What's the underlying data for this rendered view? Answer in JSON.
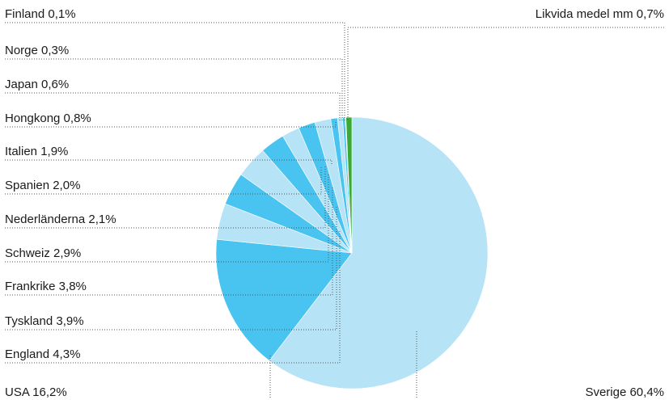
{
  "chart_data": {
    "type": "pie",
    "title": "",
    "legend": "none",
    "slices": [
      {
        "label": "Sverige 60,4%",
        "value": 60.4,
        "color": "#b7e3f7"
      },
      {
        "label": "USA 16,2%",
        "value": 16.2,
        "color": "#49c3f0"
      },
      {
        "label": "England 4,3%",
        "value": 4.3,
        "color": "#b7e3f7"
      },
      {
        "label": "Tyskland 3,9%",
        "value": 3.9,
        "color": "#49c3f0"
      },
      {
        "label": "Frankrike 3,8%",
        "value": 3.8,
        "color": "#b7e3f7"
      },
      {
        "label": "Schweiz 2,9%",
        "value": 2.9,
        "color": "#49c3f0"
      },
      {
        "label": "Nederländerna 2,1%",
        "value": 2.1,
        "color": "#b7e3f7"
      },
      {
        "label": "Spanien 2,0%",
        "value": 2.0,
        "color": "#49c3f0"
      },
      {
        "label": "Italien 1,9%",
        "value": 1.9,
        "color": "#b7e3f7"
      },
      {
        "label": "Hongkong 0,8%",
        "value": 0.8,
        "color": "#49c3f0"
      },
      {
        "label": "Japan 0,6%",
        "value": 0.6,
        "color": "#b7e3f7"
      },
      {
        "label": "Norge 0,3%",
        "value": 0.3,
        "color": "#49c3f0"
      },
      {
        "label": "Finland 0,1%",
        "value": 0.1,
        "color": "#b7e3f7"
      },
      {
        "label": "Likvida medel mm 0,7%",
        "value": 0.7,
        "color": "#3aaa35"
      }
    ]
  }
}
